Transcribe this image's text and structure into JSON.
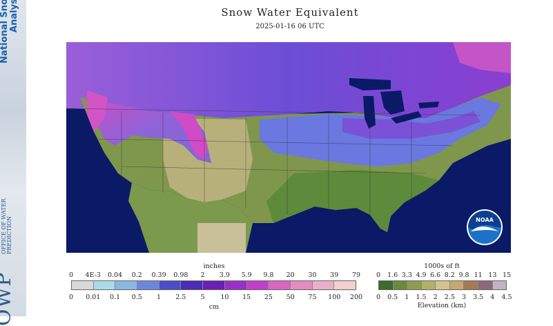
{
  "banner": {
    "title": "National Snow Analysis",
    "logo_letters": "OWP",
    "logo_sub": "OFFICE OF WATER PREDICTION"
  },
  "header": {
    "title": "Snow Water Equivalent",
    "timestamp": "2025-01-16 06 UTC"
  },
  "map": {
    "icon": "noaa-logo",
    "colors": {
      "ocean": "#0b1a66",
      "no_snow_low": "#5b7d3a",
      "no_snow_mid": "#8d9b55",
      "no_snow_high": "#b8b07a",
      "canada_snow": "#7a4fd8",
      "light_snow": "#6f7fe0",
      "deep_snow": "#d24fc9"
    }
  },
  "swe_legend": {
    "title": "inches",
    "inches_ticks": [
      "0",
      "4E-3",
      "0.04",
      "0.2",
      "0.39",
      "0.98",
      "2",
      "3.9",
      "5.9",
      "9.8",
      "20",
      "30",
      "39",
      "79"
    ],
    "cm_ticks": [
      "0",
      "0.01",
      "0.1",
      "0.5",
      "1",
      "2.5",
      "5",
      "10",
      "15",
      "25",
      "50",
      "75",
      "100",
      "200"
    ],
    "unit_bottom": "cm",
    "colors": [
      "#d9d9d9",
      "#a9dbe8",
      "#8ab8e0",
      "#6b88d8",
      "#4a4ec8",
      "#4a2cb8",
      "#6a1fb6",
      "#9a2fc8",
      "#c040c8",
      "#d865c0",
      "#e28cc0",
      "#e9b0c8",
      "#f2d0d0"
    ]
  },
  "elev_legend": {
    "title": "1000s of ft",
    "ft_ticks": [
      "0",
      "1.6",
      "3.3",
      "4.9",
      "6.6",
      "8.2",
      "9.8",
      "11",
      "13",
      "15"
    ],
    "km_ticks": [
      "0",
      "0.5",
      "1",
      "1.5",
      "2",
      "2.5",
      "3",
      "3.5",
      "4",
      "4.5"
    ],
    "unit_bottom": "Elevation (km)",
    "colors": [
      "#3d6b2c",
      "#6c8a3e",
      "#8e9c50",
      "#b3b06a",
      "#d2c58c",
      "#c9a76e",
      "#a47a54",
      "#8a6a78",
      "#c3b2c2"
    ]
  }
}
